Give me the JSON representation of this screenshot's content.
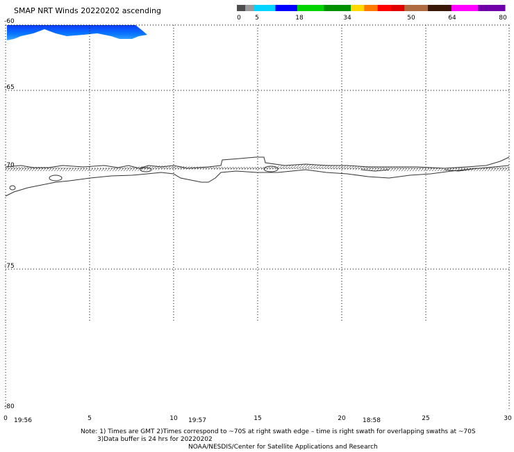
{
  "title": "SMAP NRT Winds 20220202 ascending",
  "colorbar": {
    "ticks": [
      "0",
      "5",
      "18",
      "34",
      "50",
      "64",
      "80"
    ],
    "segments": [
      {
        "from": 0,
        "to": 5,
        "colors": [
          "#4d4d4d",
          "#9a9a9a"
        ]
      },
      {
        "from": 5,
        "to": 18,
        "colors": [
          "#00d4ff",
          "#0000ff"
        ]
      },
      {
        "from": 18,
        "to": 34,
        "colors": [
          "#00d400",
          "#009000"
        ]
      },
      {
        "from": 34,
        "to": 50,
        "colors": [
          "#ffd800",
          "#ff7a00",
          "#ff0000",
          "#e00000"
        ]
      },
      {
        "from": 50,
        "to": 64,
        "colors": [
          "#b06a40",
          "#3a1808"
        ]
      },
      {
        "from": 64,
        "to": 80,
        "colors": [
          "#ff00ff",
          "#7000a8"
        ]
      }
    ]
  },
  "map": {
    "lat_labels": [
      "-60",
      "-65",
      "-70",
      "-75",
      "-80"
    ],
    "lon_labels": [
      "0",
      "5",
      "10",
      "15",
      "20",
      "25",
      "30"
    ],
    "lat_range": [
      -80,
      -60
    ],
    "lon_range": [
      0,
      30
    ],
    "swath_color_top": "#0060ff",
    "swath_color_bottom": "#30a0ff"
  },
  "times": [
    "19:56",
    "19:57",
    "18:58"
  ],
  "notes": {
    "line1": "Note: 1) Times are GMT 2)Times correspond to ~70S at right swath edge – time is right swath for overlapping swaths at ~70S",
    "line2": "3)Data buffer is 24 hrs for 20220202",
    "line3": "NOAA/NESDIS/Center for Satellite Applications and Research"
  }
}
